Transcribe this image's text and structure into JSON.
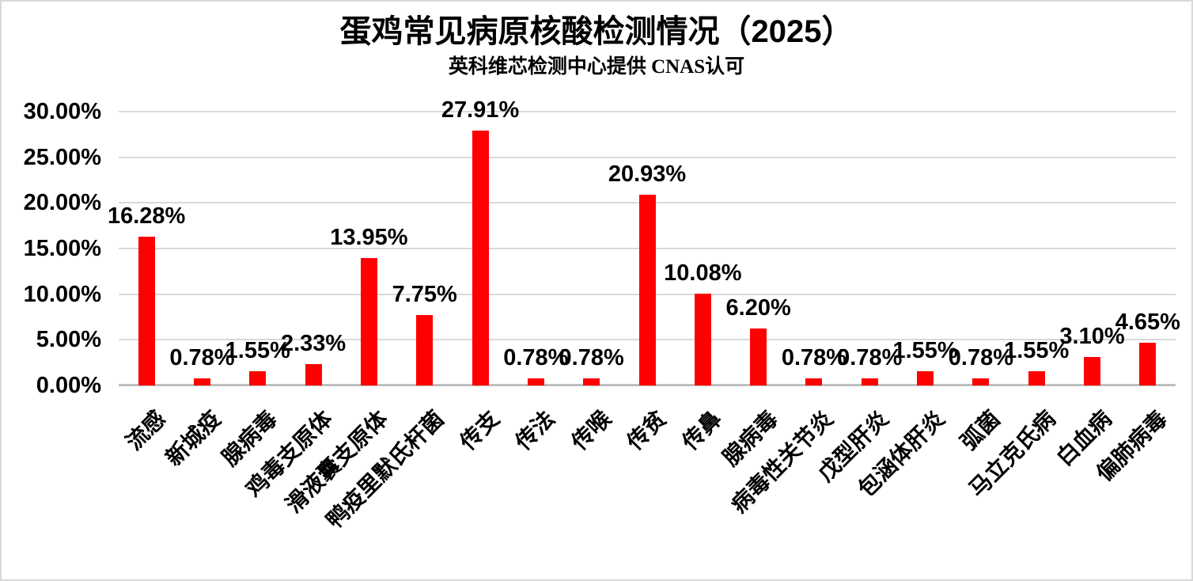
{
  "chart_data": {
    "type": "bar",
    "title": "蛋鸡常见病原核酸检测情况（2025）",
    "subtitle": "英科维芯检测中心提供 CNAS认可",
    "categories": [
      "流感",
      "新城疫",
      "腺病毒",
      "鸡毒支原体",
      "滑液囊支原体",
      "鸭疫里默氏杆菌",
      "传支",
      "传法",
      "传喉",
      "传贫",
      "传鼻",
      "腺病毒",
      "病毒性关节炎",
      "戊型肝炎",
      "包涵体肝炎",
      "弧菌",
      "马立克氏病",
      "白血病",
      "偏肺病毒"
    ],
    "values": [
      16.28,
      0.78,
      1.55,
      2.33,
      13.95,
      7.75,
      27.91,
      0.78,
      0.78,
      20.93,
      10.08,
      6.2,
      0.78,
      0.78,
      1.55,
      0.78,
      1.55,
      3.1,
      4.65
    ],
    "value_labels": [
      "16.28%",
      "0.78%",
      "1.55%",
      "2.33%",
      "13.95%",
      "7.75%",
      "27.91%",
      "0.78%",
      "0.78%",
      "20.93%",
      "10.08%",
      "6.20%",
      "0.78%",
      "0.78%",
      "1.55%",
      "0.78%",
      "1.55%",
      "3.10%",
      "4.65%"
    ],
    "xlabel": "",
    "ylabel": "",
    "ylim": [
      0,
      30
    ],
    "y_ticks": {
      "values": [
        0,
        5,
        10,
        15,
        20,
        25,
        30
      ],
      "labels": [
        "0.00%",
        "5.00%",
        "10.00%",
        "15.00%",
        "20.00%",
        "25.00%",
        "30.00%"
      ]
    },
    "grid": true,
    "legend_position": "none",
    "colors": {
      "bar": "#FF0000",
      "gridline": "#D9D9D9",
      "axis_line": "#BFBFBF",
      "text": "#000000",
      "background": "#FFFFFF",
      "border": "#D9D9D9"
    }
  }
}
